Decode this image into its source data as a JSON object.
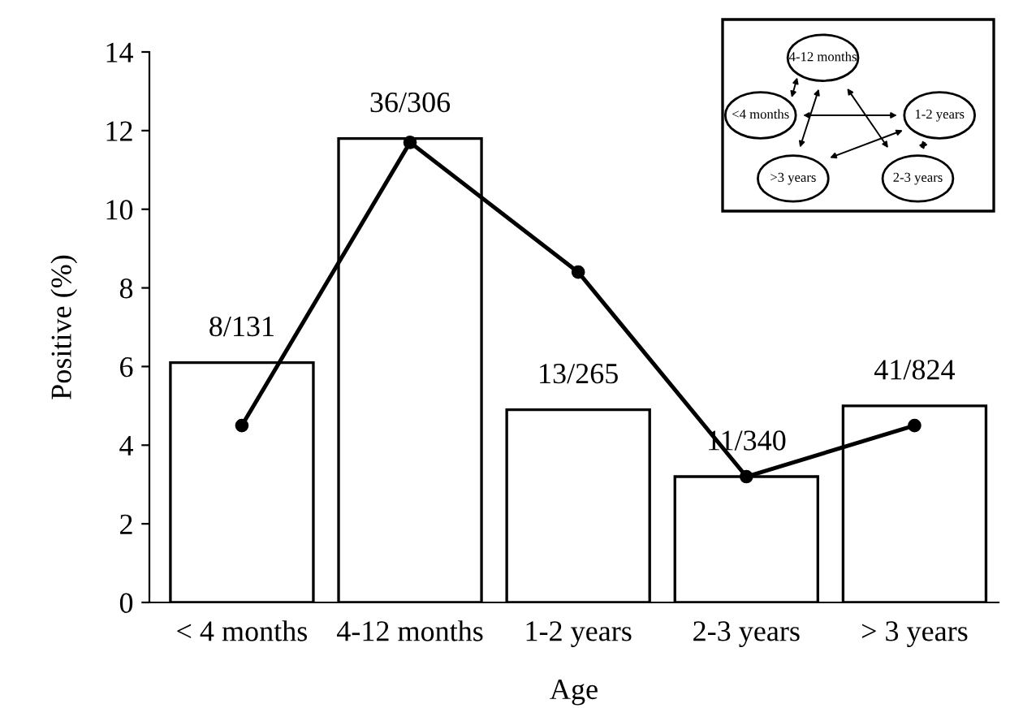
{
  "chart_data": {
    "type": "bar",
    "xlabel": "Age",
    "ylabel": "Positive (%)",
    "categories": [
      "< 4 months",
      "4-12 months",
      "1-2 years",
      "2-3 years",
      "> 3 years"
    ],
    "series": [
      {
        "color": "#ffffff",
        "values": [
          6.1,
          11.8,
          4.9,
          3.2,
          5.0
        ],
        "value_labels": [
          "8/131",
          "36/306",
          "13/265",
          "11/340",
          "41/824"
        ]
      },
      {
        "type": "line",
        "color": "#000000",
        "values": [
          4.5,
          11.7,
          8.4,
          3.2,
          4.5
        ],
        "marker": "circle",
        "line_style": "solid"
      }
    ],
    "ylim": [
      0,
      14
    ],
    "yticks": [
      0,
      2,
      4,
      6,
      8,
      10,
      12,
      14
    ],
    "grid": false,
    "legend": false,
    "annotations": [
      "4-12 months",
      "<4 months",
      "1-2 years",
      ">3 years",
      "2-3 years"
    ]
  }
}
